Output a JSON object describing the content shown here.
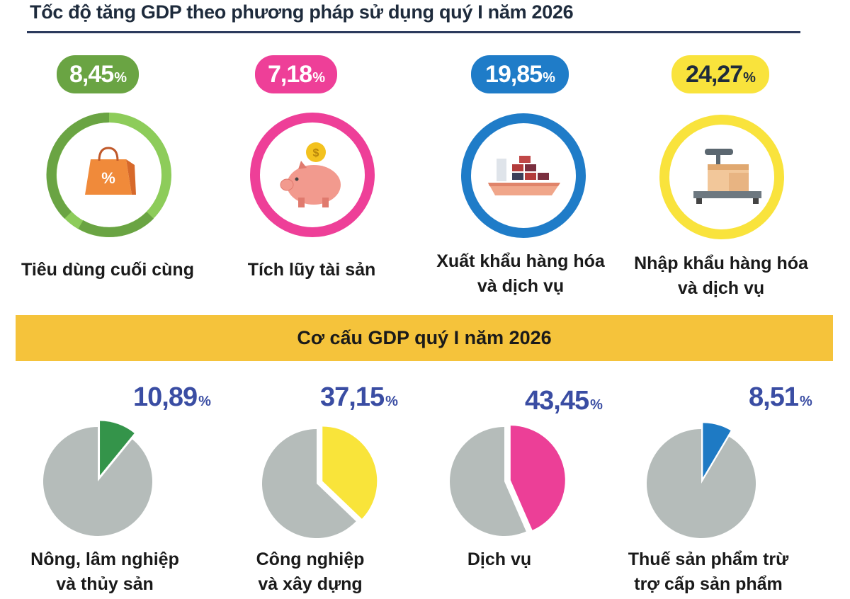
{
  "growth": {
    "title": "Tốc độ tăng GDP theo phương pháp sử dụng quý I năm 2026",
    "items": [
      {
        "value": "8,45",
        "unit": "%",
        "label": [
          "Tiêu dùng cuối cùng"
        ],
        "color": "#6aa443",
        "icon": "shopping-bag-icon"
      },
      {
        "value": "7,18",
        "unit": "%",
        "label": [
          "Tích lũy tài sản"
        ],
        "color": "#ee3f98",
        "icon": "piggy-bank-icon"
      },
      {
        "value": "19,85",
        "unit": "%",
        "label": [
          "Xuất khẩu hàng hóa",
          "và dịch vụ"
        ],
        "color": "#1f7cc8",
        "icon": "cargo-ship-icon"
      },
      {
        "value": "24,27",
        "unit": "%",
        "label": [
          "Nhập khẩu hàng hóa",
          "và dịch vụ"
        ],
        "color": "#f9e33c",
        "icon": "scale-boxes-icon"
      }
    ]
  },
  "structure": {
    "title": "Cơ cấu GDP quý I năm 2026",
    "banner_color": "#f5c33b"
  },
  "chart_data": [
    {
      "type": "pie",
      "categories": [
        "Nông, lâm nghiệp và thủy sản"
      ],
      "values": [
        10.89
      ],
      "value_label": "10,89",
      "unit": "%",
      "label": [
        "Nông, lâm nghiệp",
        "và thủy sản"
      ],
      "color": "#34944a",
      "rest_color": "#b5bcba"
    },
    {
      "type": "pie",
      "categories": [
        "Công nghiệp và xây dựng"
      ],
      "values": [
        37.15
      ],
      "value_label": "37,15",
      "unit": "%",
      "label": [
        "Công nghiệp",
        "và xây dựng"
      ],
      "color": "#f9e43a",
      "rest_color": "#b5bcba"
    },
    {
      "type": "pie",
      "categories": [
        "Dịch vụ"
      ],
      "values": [
        43.45
      ],
      "value_label": "43,45",
      "unit": "%",
      "label": [
        "Dịch vụ"
      ],
      "color": "#ec3f97",
      "rest_color": "#b5bcba"
    },
    {
      "type": "pie",
      "categories": [
        "Thuế sản phẩm trừ trợ cấp sản phẩm"
      ],
      "values": [
        8.51
      ],
      "value_label": "8,51",
      "unit": "%",
      "label": [
        "Thuế sản phẩm trừ",
        "trợ cấp sản phẩm"
      ],
      "color": "#1e7ac4",
      "rest_color": "#b5bcba"
    }
  ]
}
